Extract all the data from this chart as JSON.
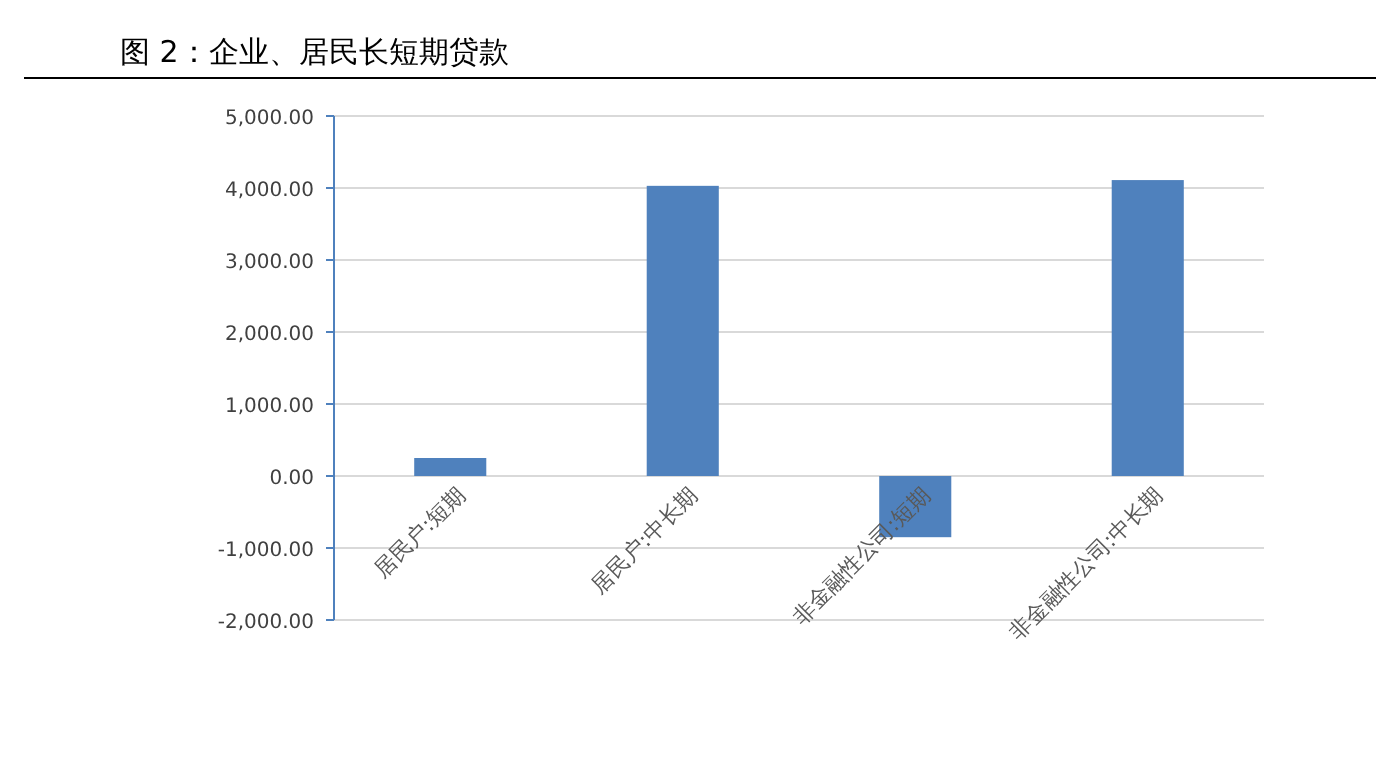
{
  "chart_data": {
    "type": "bar",
    "title": "图 2：企业、居民长短期贷款",
    "categories": [
      "居民户:短期",
      "居民户:中长期",
      "非金融性公司:短期",
      "非金融性公司:中长期"
    ],
    "values": [
      250,
      4030,
      -850,
      4110
    ],
    "color": "#4f81bd",
    "ylim": [
      -2000,
      5000
    ],
    "yticks": [
      {
        "value": -2000,
        "label": "-2,000.00"
      },
      {
        "value": -1000,
        "label": "-1,000.00"
      },
      {
        "value": 0,
        "label": "0.00"
      },
      {
        "value": 1000,
        "label": "1,000.00"
      },
      {
        "value": 2000,
        "label": "2,000.00"
      },
      {
        "value": 3000,
        "label": "3,000.00"
      },
      {
        "value": 4000,
        "label": "4,000.00"
      },
      {
        "value": 5000,
        "label": "5,000.00"
      }
    ],
    "grid": "y"
  }
}
